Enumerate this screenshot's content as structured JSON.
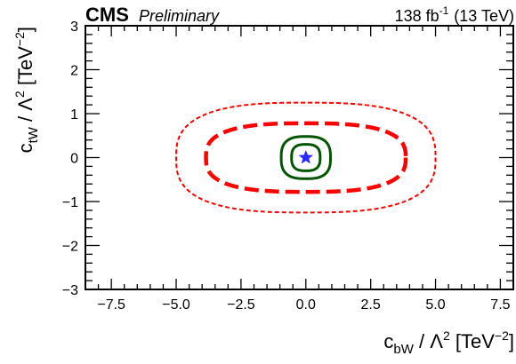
{
  "chart_data": {
    "type": "line",
    "experiment": "CMS",
    "tag": "Preliminary",
    "lumi_text_pre": "138 fb",
    "lumi_sup": "-1",
    "lumi_text_post": "(13 TeV)",
    "xlabel_pre": "c",
    "xlabel_sub": "bW",
    "xlabel_mid": " / Λ",
    "xlabel_sup": "2",
    "xlabel_unit_pre": " [TeV",
    "xlabel_unit_sup": "−2",
    "xlabel_unit_post": "]",
    "ylabel_pre": "c",
    "ylabel_sub": "tW",
    "ylabel_mid": " / Λ",
    "ylabel_sup": "2",
    "ylabel_unit_pre": " [TeV",
    "ylabel_unit_sup": "−2",
    "ylabel_unit_post": "]",
    "xlim": [
      -8.5,
      8.0
    ],
    "ylim": [
      -3,
      3
    ],
    "xticks": [
      -7.5,
      -5.0,
      -2.5,
      0.0,
      2.5,
      5.0,
      7.5
    ],
    "xtick_labels": [
      "−7.5",
      "−5.0",
      "−2.5",
      "0.0",
      "2.5",
      "5.0",
      "7.5"
    ],
    "yticks": [
      -3,
      -2,
      -1,
      0,
      1,
      2,
      3
    ],
    "ytick_labels": [
      "−3",
      "−2",
      "−1",
      "0",
      "1",
      "2",
      "3"
    ],
    "best_fit": {
      "x": 0.0,
      "y": 0.0,
      "marker": "star",
      "color": "#2a2aff"
    },
    "contours": [
      {
        "cx": 0.0,
        "cy": 0.0,
        "ax": 5.0,
        "ay": 1.25,
        "color": "#ff0000",
        "style": "dotted"
      },
      {
        "cx": 0.0,
        "cy": 0.0,
        "ax": 3.85,
        "ay": 0.78,
        "color": "#ff0000",
        "style": "dashed"
      },
      {
        "cx": 0.0,
        "cy": 0.0,
        "ax": 0.95,
        "ay": 0.48,
        "color": "#005500",
        "style": "solid"
      },
      {
        "cx": 0.0,
        "cy": 0.0,
        "ax": 0.55,
        "ay": 0.3,
        "color": "#005500",
        "style": "solid"
      }
    ]
  }
}
